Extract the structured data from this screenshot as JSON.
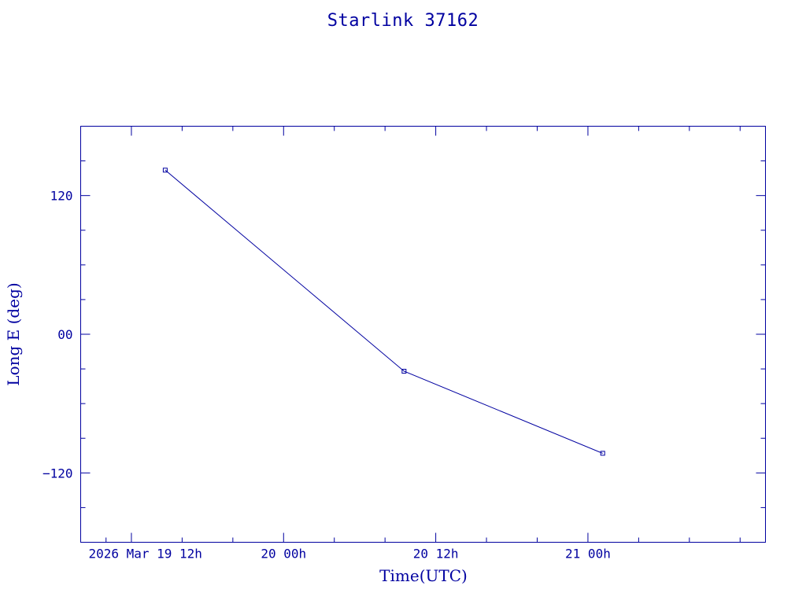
{
  "chart_data": {
    "type": "line",
    "title": "Starlink 37162",
    "xlabel": "Time(UTC)",
    "ylabel": "Long E (deg)",
    "x_ticks": [
      {
        "at": "2026-03-19T12:00Z",
        "label": "2026 Mar 19  12h"
      },
      {
        "at": "2026-03-20T00:00Z",
        "label": "20  00h"
      },
      {
        "at": "2026-03-20T12:00Z",
        "label": "20  12h"
      },
      {
        "at": "2026-03-21T00:00Z",
        "label": "21  00h"
      }
    ],
    "y_ticks": [
      {
        "value": 120,
        "label": "120"
      },
      {
        "value": 0,
        "label": "00"
      },
      {
        "value": -120,
        "label": "−120"
      }
    ],
    "xlim": [
      "2026-03-19T08:00Z",
      "2026-03-21T14:00Z"
    ],
    "ylim": [
      -180,
      180
    ],
    "grid": false,
    "color": "#0000a0",
    "series": [
      {
        "x": [
          "2026-03-19T14:40Z",
          "2026-03-20T09:30Z",
          "2026-03-21T01:10Z"
        ],
        "y": [
          142,
          -32,
          -103
        ]
      }
    ]
  }
}
